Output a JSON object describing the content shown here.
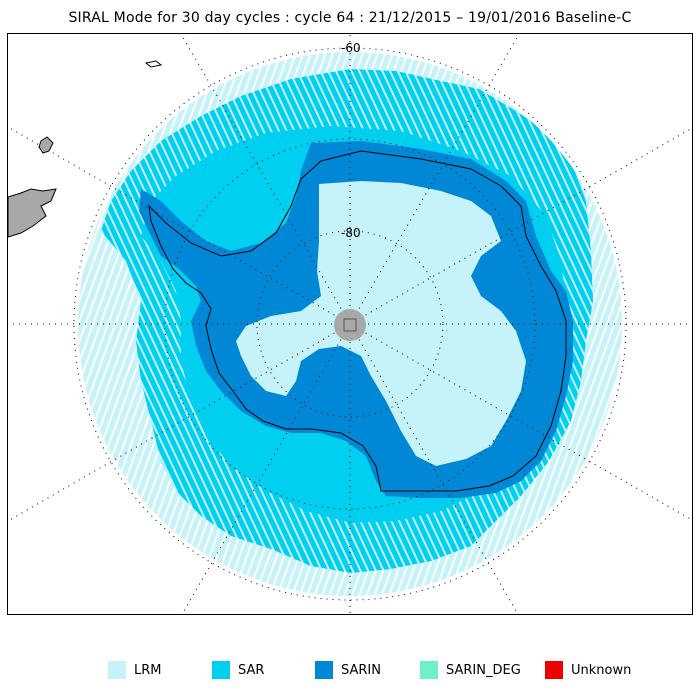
{
  "title": "SIRAL Mode for 30 day cycles : cycle 64 : 21/12/2015 – 19/01/2016 Baseline-C",
  "map": {
    "projection": "south polar stereographic",
    "latitude_labels": [
      "-60",
      "-80"
    ],
    "colors": {
      "LRM": "#c6f2f9",
      "SAR": "#00cff0",
      "SARIN": "#0088d6",
      "SARIN_DEG": "#6ff0c8",
      "Unknown": "#ee0000",
      "land": "#a8a8a8",
      "pole_hole": "#a8a8a8"
    }
  },
  "legend": [
    {
      "label": "LRM",
      "color": "#c6f2f9"
    },
    {
      "label": "SAR",
      "color": "#00cff0"
    },
    {
      "label": "SARIN",
      "color": "#0088d6"
    },
    {
      "label": "SARIN_DEG",
      "color": "#6ff0c8"
    },
    {
      "label": "Unknown",
      "color": "#ee0000"
    }
  ]
}
